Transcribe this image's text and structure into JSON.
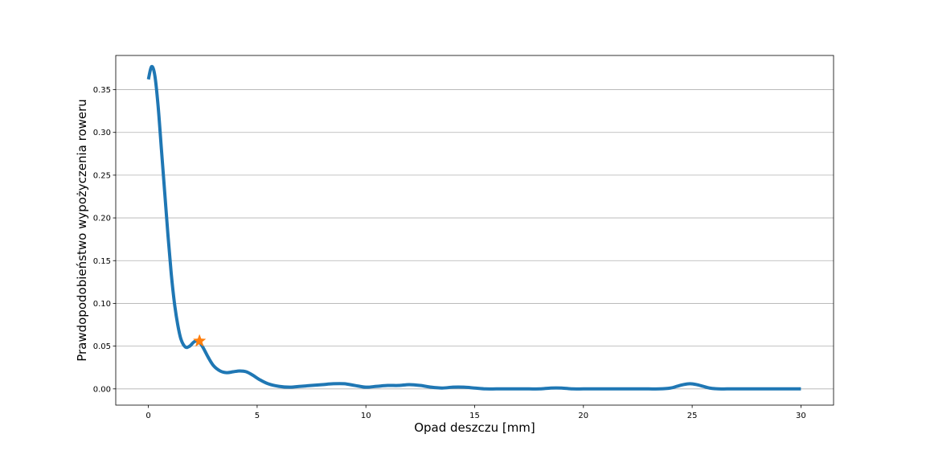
{
  "chart_data": {
    "type": "line",
    "title": "",
    "xlabel": "Opad deszczu [mm]",
    "ylabel": "Prawdopodobieństwo wypożyczenia roweru",
    "xlim": [
      -1.5,
      31.5
    ],
    "ylim": [
      -0.019,
      0.39
    ],
    "x_ticks": [
      0,
      5,
      10,
      15,
      20,
      25,
      30
    ],
    "y_ticks": [
      0.0,
      0.05,
      0.1,
      0.15,
      0.2,
      0.25,
      0.3,
      0.35
    ],
    "x_tick_labels": [
      "0",
      "5",
      "10",
      "15",
      "20",
      "25",
      "30"
    ],
    "y_tick_labels": [
      "0.00",
      "0.05",
      "0.10",
      "0.15",
      "0.20",
      "0.25",
      "0.30",
      "0.35"
    ],
    "grid": "horizontal",
    "series": [
      {
        "color": "#1f77b4",
        "x": [
          0,
          0.15,
          0.3,
          0.45,
          0.6,
          0.75,
          0.9,
          1.05,
          1.2,
          1.35,
          1.5,
          1.7,
          1.9,
          2.1,
          2.3,
          2.5,
          2.75,
          3.0,
          3.3,
          3.6,
          3.9,
          4.2,
          4.5,
          4.8,
          5.1,
          5.5,
          6.0,
          6.5,
          7.0,
          7.5,
          8.0,
          8.5,
          9.0,
          9.5,
          10.0,
          10.5,
          11.0,
          11.5,
          12.0,
          12.5,
          13.0,
          13.5,
          14.0,
          14.5,
          15.0,
          15.5,
          16.0,
          16.5,
          17.0,
          17.5,
          18.0,
          18.5,
          19.0,
          19.5,
          20.0,
          20.5,
          21.0,
          21.5,
          22.0,
          22.5,
          23.0,
          23.5,
          24.0,
          24.3,
          24.6,
          24.9,
          25.2,
          25.5,
          25.8,
          26.2,
          26.6,
          27.0,
          28.0,
          29.0,
          30.0
        ],
        "y": [
          0.362,
          0.377,
          0.366,
          0.33,
          0.28,
          0.23,
          0.18,
          0.135,
          0.1,
          0.075,
          0.058,
          0.049,
          0.05,
          0.055,
          0.056,
          0.049,
          0.037,
          0.027,
          0.021,
          0.019,
          0.02,
          0.021,
          0.02,
          0.016,
          0.011,
          0.006,
          0.003,
          0.002,
          0.003,
          0.004,
          0.005,
          0.006,
          0.006,
          0.004,
          0.002,
          0.003,
          0.004,
          0.004,
          0.005,
          0.004,
          0.002,
          0.001,
          0.002,
          0.002,
          0.001,
          0.0,
          0.0,
          0.0,
          0.0,
          0.0,
          0.0,
          0.001,
          0.001,
          0.0,
          0.0,
          0.0,
          0.0,
          0.0,
          0.0,
          0.0,
          0.0,
          0.0,
          0.001,
          0.003,
          0.005,
          0.006,
          0.005,
          0.003,
          0.001,
          0.0,
          0.0,
          0.0,
          0.0,
          0.0,
          0.0
        ]
      }
    ],
    "marker": {
      "x": 2.35,
      "y": 0.056,
      "shape": "star",
      "color": "#ff7f0e"
    }
  }
}
